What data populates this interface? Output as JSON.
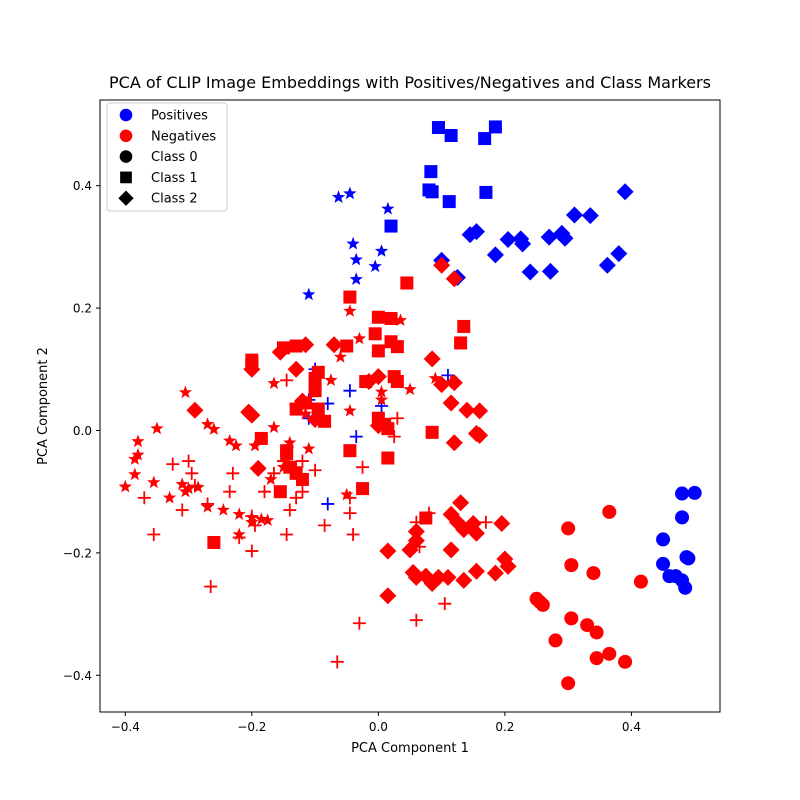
{
  "chart_data": {
    "type": "scatter",
    "title": "PCA of CLIP Image Embeddings with Positives/Negatives and Class Markers",
    "xlabel": "PCA Component 1",
    "ylabel": "PCA Component 2",
    "xlim": [
      -0.44,
      0.54
    ],
    "ylim": [
      -0.46,
      0.54
    ],
    "xticks": [
      -0.4,
      -0.2,
      0.0,
      0.2,
      0.4
    ],
    "yticks": [
      -0.4,
      -0.2,
      0.0,
      0.2,
      0.4
    ],
    "xtick_labels": [
      "−0.4",
      "−0.2",
      "0.0",
      "0.2",
      "0.4"
    ],
    "ytick_labels": [
      "−0.4",
      "−0.2",
      "0.0",
      "0.2",
      "0.4"
    ],
    "grid": false,
    "legend_position": "top-left",
    "legend": [
      {
        "label": "Positives",
        "marker": "circle",
        "color": "#0000ff"
      },
      {
        "label": "Negatives",
        "marker": "circle",
        "color": "#ff0000"
      },
      {
        "label": "Class 0",
        "marker": "circle",
        "color": "#000000"
      },
      {
        "label": "Class 1",
        "marker": "square",
        "color": "#000000"
      },
      {
        "label": "Class 2",
        "marker": "diamond",
        "color": "#000000"
      }
    ],
    "colors": {
      "positive": "#0000ff",
      "negative": "#ff0000"
    },
    "series": [
      {
        "color": "positive",
        "marker": "circle",
        "points": [
          [
            0.45,
            -0.178
          ],
          [
            0.48,
            -0.103
          ],
          [
            0.5,
            -0.102
          ],
          [
            0.48,
            -0.142
          ],
          [
            0.487,
            -0.207
          ],
          [
            0.49,
            -0.209
          ],
          [
            0.45,
            -0.218
          ],
          [
            0.46,
            -0.238
          ],
          [
            0.47,
            -0.238
          ],
          [
            0.48,
            -0.245
          ],
          [
            0.485,
            -0.257
          ]
        ]
      },
      {
        "color": "positive",
        "marker": "square",
        "points": [
          [
            0.095,
            0.495
          ],
          [
            0.115,
            0.482
          ],
          [
            0.185,
            0.496
          ],
          [
            0.168,
            0.477
          ],
          [
            0.083,
            0.423
          ],
          [
            0.08,
            0.393
          ],
          [
            0.085,
            0.39
          ],
          [
            0.112,
            0.374
          ],
          [
            0.17,
            0.389
          ],
          [
            0.02,
            0.334
          ]
        ]
      },
      {
        "color": "positive",
        "marker": "diamond",
        "points": [
          [
            0.39,
            0.39
          ],
          [
            0.31,
            0.352
          ],
          [
            0.335,
            0.351
          ],
          [
            0.145,
            0.32
          ],
          [
            0.155,
            0.325
          ],
          [
            0.205,
            0.312
          ],
          [
            0.225,
            0.313
          ],
          [
            0.228,
            0.305
          ],
          [
            0.27,
            0.316
          ],
          [
            0.29,
            0.322
          ],
          [
            0.295,
            0.314
          ],
          [
            0.185,
            0.287
          ],
          [
            0.38,
            0.289
          ],
          [
            0.362,
            0.27
          ],
          [
            0.24,
            0.259
          ],
          [
            0.272,
            0.26
          ],
          [
            0.1,
            0.278
          ],
          [
            0.125,
            0.25
          ]
        ]
      },
      {
        "color": "positive",
        "marker": "star",
        "points": [
          [
            -0.063,
            0.381
          ],
          [
            -0.045,
            0.387
          ],
          [
            0.015,
            0.362
          ],
          [
            -0.04,
            0.305
          ],
          [
            0.005,
            0.293
          ],
          [
            -0.035,
            0.279
          ],
          [
            -0.005,
            0.268
          ],
          [
            -0.035,
            0.247
          ],
          [
            -0.11,
            0.222
          ]
        ]
      },
      {
        "color": "positive",
        "marker": "plus",
        "points": [
          [
            -0.1,
            0.1
          ],
          [
            -0.08,
            0.044
          ],
          [
            -0.045,
            0.065
          ],
          [
            -0.035,
            -0.01
          ],
          [
            0.005,
            0.04
          ],
          [
            -0.11,
            0.02
          ],
          [
            -0.08,
            -0.12
          ],
          [
            0.11,
            0.09
          ],
          [
            -0.11,
            0.05
          ]
        ]
      },
      {
        "color": "negative",
        "marker": "circle",
        "points": [
          [
            0.3,
            -0.16
          ],
          [
            0.365,
            -0.133
          ],
          [
            0.305,
            -0.22
          ],
          [
            0.34,
            -0.233
          ],
          [
            0.415,
            -0.247
          ],
          [
            0.25,
            -0.275
          ],
          [
            0.255,
            -0.28
          ],
          [
            0.26,
            -0.285
          ],
          [
            0.305,
            -0.307
          ],
          [
            0.33,
            -0.318
          ],
          [
            0.345,
            -0.33
          ],
          [
            0.28,
            -0.343
          ],
          [
            0.365,
            -0.365
          ],
          [
            0.345,
            -0.372
          ],
          [
            0.39,
            -0.378
          ],
          [
            0.3,
            -0.413
          ]
        ]
      },
      {
        "color": "negative",
        "marker": "square",
        "points": [
          [
            -0.045,
            0.218
          ],
          [
            0.045,
            0.241
          ],
          [
            0.135,
            0.17
          ],
          [
            0.0,
            0.185
          ],
          [
            0.02,
            0.183
          ],
          [
            -0.005,
            0.158
          ],
          [
            0.13,
            0.143
          ],
          [
            -0.2,
            0.115
          ],
          [
            -0.2,
            0.108
          ],
          [
            -0.15,
            0.135
          ],
          [
            -0.13,
            0.138
          ],
          [
            -0.05,
            0.138
          ],
          [
            0.0,
            0.13
          ],
          [
            0.03,
            0.137
          ],
          [
            0.02,
            0.145
          ],
          [
            -0.095,
            0.095
          ],
          [
            -0.1,
            0.085
          ],
          [
            -0.1,
            0.065
          ],
          [
            -0.02,
            0.08
          ],
          [
            0.025,
            0.088
          ],
          [
            0.03,
            0.08
          ],
          [
            -0.13,
            0.035
          ],
          [
            -0.115,
            0.045
          ],
          [
            -0.095,
            0.035
          ],
          [
            -0.085,
            0.015
          ],
          [
            0.0,
            0.02
          ],
          [
            0.01,
            0.01
          ],
          [
            0.015,
            0.003
          ],
          [
            -0.185,
            -0.013
          ],
          [
            -0.145,
            -0.033
          ],
          [
            -0.145,
            -0.038
          ],
          [
            -0.045,
            -0.033
          ],
          [
            0.015,
            -0.045
          ],
          [
            0.085,
            -0.003
          ],
          [
            -0.14,
            -0.06
          ],
          [
            -0.13,
            -0.07
          ],
          [
            -0.12,
            -0.08
          ],
          [
            -0.025,
            -0.095
          ],
          [
            -0.155,
            -0.1
          ],
          [
            0.075,
            -0.143
          ],
          [
            -0.26,
            -0.183
          ]
        ]
      },
      {
        "color": "negative",
        "marker": "diamond",
        "points": [
          [
            0.12,
            0.248
          ],
          [
            0.1,
            0.27
          ],
          [
            0.085,
            0.117
          ],
          [
            -0.155,
            0.128
          ],
          [
            -0.13,
            0.1
          ],
          [
            -0.2,
            0.1
          ],
          [
            -0.115,
            0.14
          ],
          [
            -0.07,
            0.14
          ],
          [
            -0.015,
            0.08
          ],
          [
            0.0,
            0.088
          ],
          [
            0.1,
            0.075
          ],
          [
            0.12,
            0.078
          ],
          [
            0.115,
            0.045
          ],
          [
            0.14,
            0.033
          ],
          [
            0.16,
            0.032
          ],
          [
            -0.29,
            0.033
          ],
          [
            -0.205,
            0.03
          ],
          [
            -0.2,
            0.025
          ],
          [
            -0.12,
            0.048
          ],
          [
            -0.1,
            0.018
          ],
          [
            0.0,
            0.008
          ],
          [
            0.155,
            -0.005
          ],
          [
            0.16,
            -0.008
          ],
          [
            0.12,
            -0.02
          ],
          [
            -0.19,
            -0.062
          ],
          [
            0.13,
            -0.118
          ],
          [
            0.115,
            -0.137
          ],
          [
            0.125,
            -0.15
          ],
          [
            0.135,
            -0.162
          ],
          [
            0.15,
            -0.152
          ],
          [
            0.155,
            -0.168
          ],
          [
            0.195,
            -0.152
          ],
          [
            0.06,
            -0.165
          ],
          [
            0.06,
            -0.18
          ],
          [
            0.05,
            -0.195
          ],
          [
            0.115,
            -0.195
          ],
          [
            0.015,
            -0.197
          ],
          [
            0.2,
            -0.21
          ],
          [
            0.205,
            -0.222
          ],
          [
            0.055,
            -0.232
          ],
          [
            0.06,
            -0.24
          ],
          [
            0.075,
            -0.238
          ],
          [
            0.085,
            -0.25
          ],
          [
            0.095,
            -0.24
          ],
          [
            0.11,
            -0.24
          ],
          [
            0.135,
            -0.245
          ],
          [
            0.155,
            -0.23
          ],
          [
            0.185,
            -0.233
          ],
          [
            0.015,
            -0.27
          ]
        ]
      },
      {
        "color": "negative",
        "marker": "star",
        "points": [
          [
            -0.045,
            0.195
          ],
          [
            -0.03,
            0.15
          ],
          [
            -0.06,
            0.12
          ],
          [
            -0.305,
            0.062
          ],
          [
            -0.165,
            0.077
          ],
          [
            -0.075,
            0.082
          ],
          [
            0.05,
            0.067
          ],
          [
            0.09,
            0.085
          ],
          [
            0.005,
            0.063
          ],
          [
            -0.045,
            0.032
          ],
          [
            -0.115,
            0.027
          ],
          [
            -0.27,
            0.01
          ],
          [
            -0.26,
            0.002
          ],
          [
            -0.35,
            0.003
          ],
          [
            -0.38,
            -0.018
          ],
          [
            -0.235,
            -0.017
          ],
          [
            -0.225,
            -0.025
          ],
          [
            -0.385,
            -0.047
          ],
          [
            -0.38,
            -0.04
          ],
          [
            -0.195,
            -0.025
          ],
          [
            -0.165,
            0.005
          ],
          [
            -0.14,
            -0.02
          ],
          [
            -0.11,
            -0.03
          ],
          [
            -0.385,
            -0.072
          ],
          [
            -0.4,
            -0.092
          ],
          [
            -0.355,
            -0.085
          ],
          [
            -0.33,
            -0.11
          ],
          [
            -0.31,
            -0.088
          ],
          [
            -0.305,
            -0.1
          ],
          [
            -0.3,
            -0.095
          ],
          [
            -0.285,
            -0.093
          ],
          [
            -0.27,
            -0.125
          ],
          [
            -0.245,
            -0.13
          ],
          [
            -0.22,
            -0.137
          ],
          [
            -0.2,
            -0.142
          ],
          [
            -0.185,
            -0.145
          ],
          [
            -0.175,
            -0.147
          ],
          [
            -0.2,
            -0.15
          ],
          [
            -0.22,
            -0.17
          ],
          [
            -0.05,
            -0.105
          ],
          [
            0.035,
            0.18
          ],
          [
            0.005,
            0.05
          ],
          [
            -0.17,
            -0.08
          ],
          [
            -0.15,
            -0.06
          ]
        ]
      },
      {
        "color": "negative",
        "marker": "plus",
        "points": [
          [
            -0.145,
            0.082
          ],
          [
            -0.165,
            -0.07
          ],
          [
            -0.13,
            -0.06
          ],
          [
            -0.1,
            -0.065
          ],
          [
            -0.12,
            -0.05
          ],
          [
            -0.15,
            -0.05
          ],
          [
            -0.325,
            -0.055
          ],
          [
            -0.3,
            -0.05
          ],
          [
            -0.37,
            -0.11
          ],
          [
            -0.295,
            -0.07
          ],
          [
            -0.29,
            -0.09
          ],
          [
            -0.23,
            -0.07
          ],
          [
            -0.27,
            -0.12
          ],
          [
            -0.235,
            -0.1
          ],
          [
            -0.13,
            -0.11
          ],
          [
            -0.12,
            -0.1
          ],
          [
            -0.14,
            -0.13
          ],
          [
            -0.045,
            -0.11
          ],
          [
            -0.045,
            -0.135
          ],
          [
            -0.04,
            -0.17
          ],
          [
            -0.085,
            -0.155
          ],
          [
            -0.145,
            -0.17
          ],
          [
            -0.195,
            -0.155
          ],
          [
            -0.22,
            -0.175
          ],
          [
            -0.355,
            -0.17
          ],
          [
            -0.2,
            -0.197
          ],
          [
            -0.31,
            -0.13
          ],
          [
            -0.265,
            -0.255
          ],
          [
            0.06,
            -0.31
          ],
          [
            0.105,
            -0.283
          ],
          [
            -0.03,
            -0.315
          ],
          [
            -0.065,
            -0.378
          ],
          [
            0.03,
            0.02
          ],
          [
            0.025,
            -0.01
          ],
          [
            -0.025,
            -0.06
          ],
          [
            0.08,
            -0.135
          ],
          [
            0.17,
            -0.15
          ],
          [
            0.115,
            0.08
          ],
          [
            0.06,
            -0.15
          ],
          [
            0.065,
            -0.19
          ],
          [
            -0.2,
            -0.14
          ],
          [
            -0.18,
            -0.1
          ]
        ]
      }
    ]
  }
}
